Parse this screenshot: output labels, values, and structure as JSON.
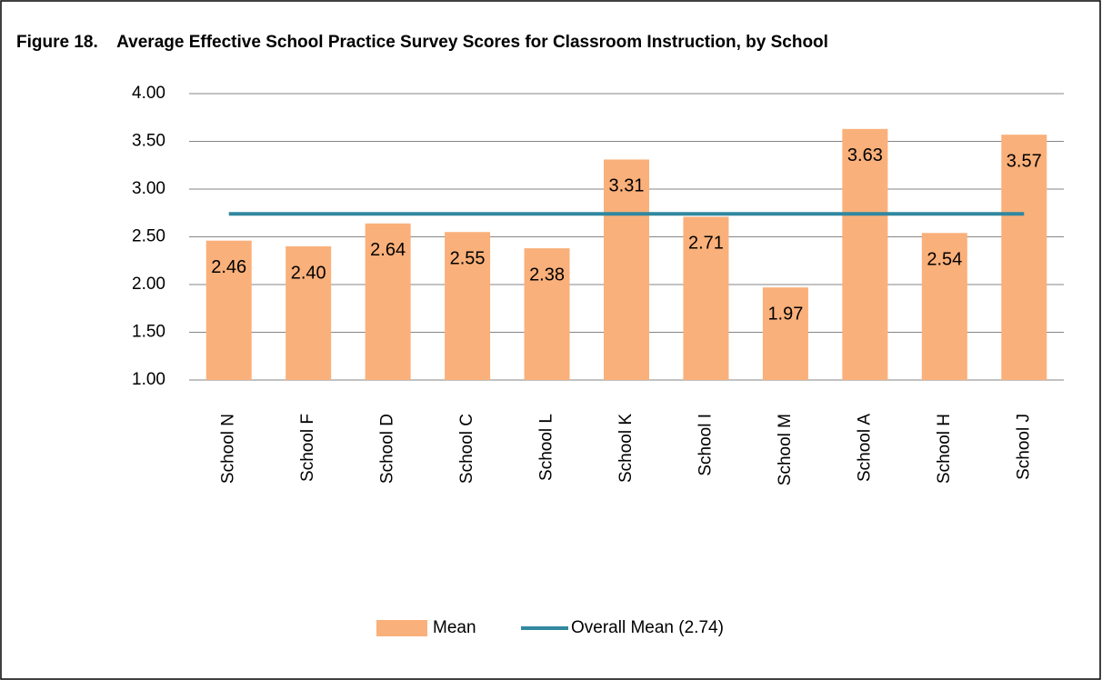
{
  "chart_data": {
    "type": "bar",
    "title": "Figure 18.    Average Effective School Practice Survey Scores for Classroom Instruction, by School",
    "categories": [
      "School N",
      "School F",
      "School D",
      "School C",
      "School L",
      "School K",
      "School I",
      "School M",
      "School A",
      "School H",
      "School J"
    ],
    "series": [
      {
        "name": "Mean",
        "type": "bar",
        "color": "#fab07a",
        "values": [
          2.46,
          2.4,
          2.64,
          2.55,
          2.38,
          3.31,
          2.71,
          1.97,
          3.63,
          2.54,
          3.57
        ],
        "value_labels": [
          "2.46",
          "2.40",
          "2.64",
          "2.55",
          "2.38",
          "3.31",
          "2.71",
          "1.97",
          "3.63",
          "2.54",
          "3.57"
        ]
      },
      {
        "name": "Overall Mean (2.74)",
        "type": "line",
        "color": "#31889f",
        "values": [
          2.74,
          2.74,
          2.74,
          2.74,
          2.74,
          2.74,
          2.74,
          2.74,
          2.74,
          2.74,
          2.74
        ]
      }
    ],
    "ylim": [
      1,
      4
    ],
    "yticks": [
      {
        "value": 1,
        "label": "1.00"
      },
      {
        "value": 1.5,
        "label": "1.50"
      },
      {
        "value": 2,
        "label": "2.00"
      },
      {
        "value": 2.5,
        "label": "2.50"
      },
      {
        "value": 3,
        "label": "3.00"
      },
      {
        "value": 3.5,
        "label": "3.50"
      },
      {
        "value": 4,
        "label": "4.00"
      }
    ],
    "grid": true,
    "legend": "bottom"
  }
}
